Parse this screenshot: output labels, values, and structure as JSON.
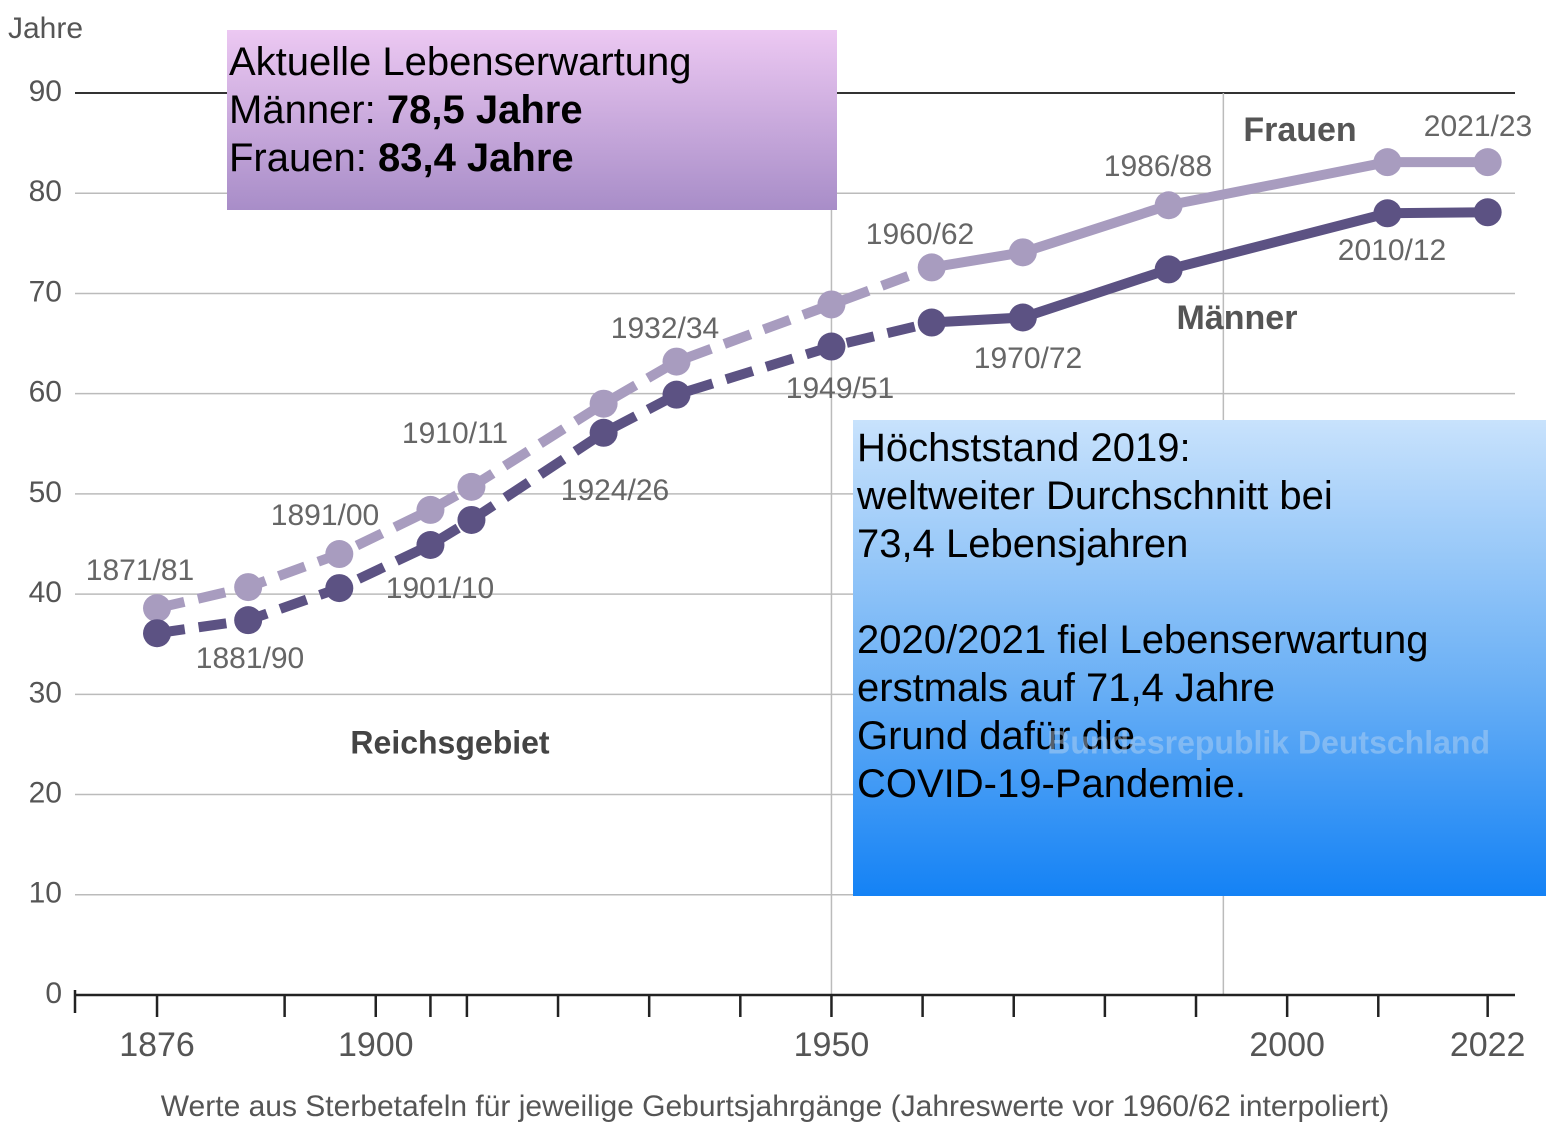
{
  "chart_data": {
    "type": "line",
    "y_label": "Jahre",
    "caption": "Werte aus Sterbetafeln für jeweilige Geburtsjahrgänge (Jahreswerte vor 1960/62 interpoliert)",
    "x": [
      1876,
      1886,
      1896,
      1906,
      1910.5,
      1925,
      1933,
      1950,
      1961,
      1971,
      1987,
      2011,
      2022
    ],
    "point_labels": [
      "1871/81",
      "1881/90",
      "1891/00",
      "1901/10",
      "1910/11",
      "1924/26",
      "1932/34",
      "1949/51",
      "1960/62",
      "1970/72",
      "1986/88",
      "2010/12",
      "2021/23"
    ],
    "series": [
      {
        "name": "Frauen",
        "color": "#a89cbf",
        "values": [
          38.6,
          40.7,
          44.0,
          48.4,
          50.7,
          59.0,
          63.2,
          68.9,
          72.6,
          74.1,
          78.8,
          83.1,
          83.1
        ]
      },
      {
        "name": "Männer",
        "color": "#5c5283",
        "values": [
          36.1,
          37.4,
          40.6,
          44.9,
          47.4,
          56.1,
          59.9,
          64.7,
          67.1,
          67.6,
          72.4,
          78.0,
          78.1
        ]
      }
    ],
    "dashed_until_x": 1961,
    "xlim": [
      1867,
      2025
    ],
    "xticks": [
      1876,
      1900,
      1950,
      2000,
      2022
    ],
    "xminor_ticks": [
      1890,
      1906,
      1910,
      1920,
      1930,
      1940,
      1960,
      1970,
      1980,
      1990,
      2010
    ],
    "vgrid": [
      1950,
      1993
    ],
    "ylim": [
      0,
      90
    ],
    "yticks": [
      0,
      10,
      20,
      30,
      40,
      50,
      60,
      70,
      80,
      90
    ],
    "grid": true,
    "region_labels": [
      "Reichsgebiet",
      "Bundesrepublik Deutschland"
    ]
  },
  "info_boxes": [
    {
      "lines": [
        [
          "Aktuelle Lebenserwartung"
        ],
        [
          "Männer: ",
          "78,5 Jahre"
        ],
        [
          "Frauen: ",
          "83,4 Jahre"
        ]
      ]
    },
    {
      "lines": [
        [
          "Höchststand 2019:"
        ],
        [
          "weltweiter Durchschnitt bei"
        ],
        [
          "73,4 Lebensjahren"
        ],
        [],
        [
          "2020/2021 fiel Lebenserwartung"
        ],
        [
          "erstmals auf 71,4 Jahre"
        ],
        [
          "Grund dafür die"
        ],
        [
          "COVID-19-Pandemie."
        ]
      ]
    }
  ]
}
